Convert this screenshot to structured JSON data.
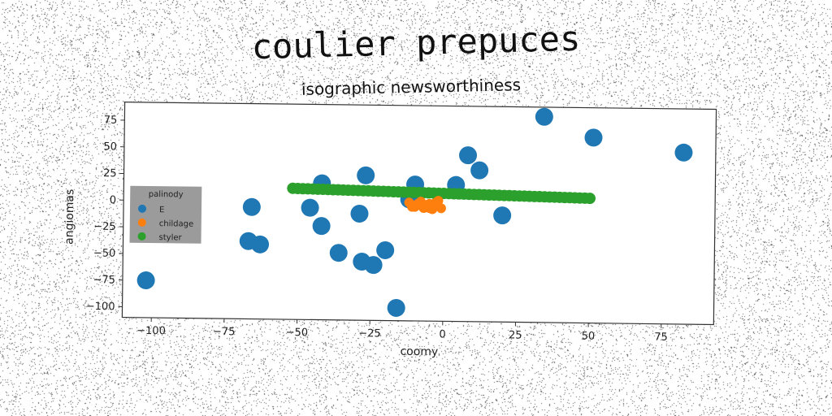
{
  "chart_data": {
    "type": "scatter",
    "title": "coulier prepuces",
    "subtitle": "isographic newsworthiness",
    "xlabel": "coomy",
    "ylabel": "angiomas",
    "xlim": [
      -110,
      93
    ],
    "ylim": [
      -110,
      92
    ],
    "xticks": [
      -100,
      -75,
      -50,
      -25,
      0,
      25,
      50,
      75
    ],
    "yticks": [
      75,
      50,
      25,
      0,
      -25,
      -50,
      -75,
      -100
    ],
    "xtick_labels": [
      "−100",
      "−75",
      "−50",
      "−25",
      "0",
      "25",
      "50",
      "75"
    ],
    "ytick_labels": [
      "75",
      "50",
      "25",
      "0",
      "−25",
      "−50",
      "−75",
      "−100"
    ],
    "grid": false,
    "legend": {
      "title": "palinody",
      "placement": "center-left"
    },
    "series": [
      {
        "name": "E",
        "color": "#1f77b4",
        "points": [
          [
            34,
            83
          ],
          [
            51,
            64
          ],
          [
            82,
            51
          ],
          [
            8,
            46
          ],
          [
            12,
            32
          ],
          [
            -27,
            26
          ],
          [
            -42,
            18
          ],
          [
            -10,
            18
          ],
          [
            4,
            18
          ],
          [
            -12,
            4
          ],
          [
            -66,
            -5
          ],
          [
            -46,
            -5
          ],
          [
            -29,
            -10
          ],
          [
            20,
            -10
          ],
          [
            -42,
            -22
          ],
          [
            -67,
            -37
          ],
          [
            -63,
            -40
          ],
          [
            -36,
            -47
          ],
          [
            -20,
            -44
          ],
          [
            -28,
            -55
          ],
          [
            -24,
            -58
          ],
          [
            -102,
            -75
          ],
          [
            -16,
            -98
          ]
        ]
      },
      {
        "name": "childage",
        "color": "#ff7f0e",
        "points": [
          [
            -12,
            1
          ],
          [
            -10,
            -3
          ],
          [
            -8,
            2
          ],
          [
            -7,
            -4
          ],
          [
            -5,
            0
          ],
          [
            -4,
            -5
          ],
          [
            -3,
            -2
          ],
          [
            -2,
            3
          ],
          [
            -1,
            -4
          ],
          [
            -6,
            -1
          ],
          [
            -9,
            0
          ],
          [
            -11,
            -3
          ],
          [
            -3,
            1
          ],
          [
            -5,
            -4
          ]
        ]
      },
      {
        "name": "styler",
        "color": "#2ca02c",
        "x_range": [
          -52,
          50
        ],
        "y_range": [
          13,
          7
        ],
        "count": 60
      }
    ]
  }
}
